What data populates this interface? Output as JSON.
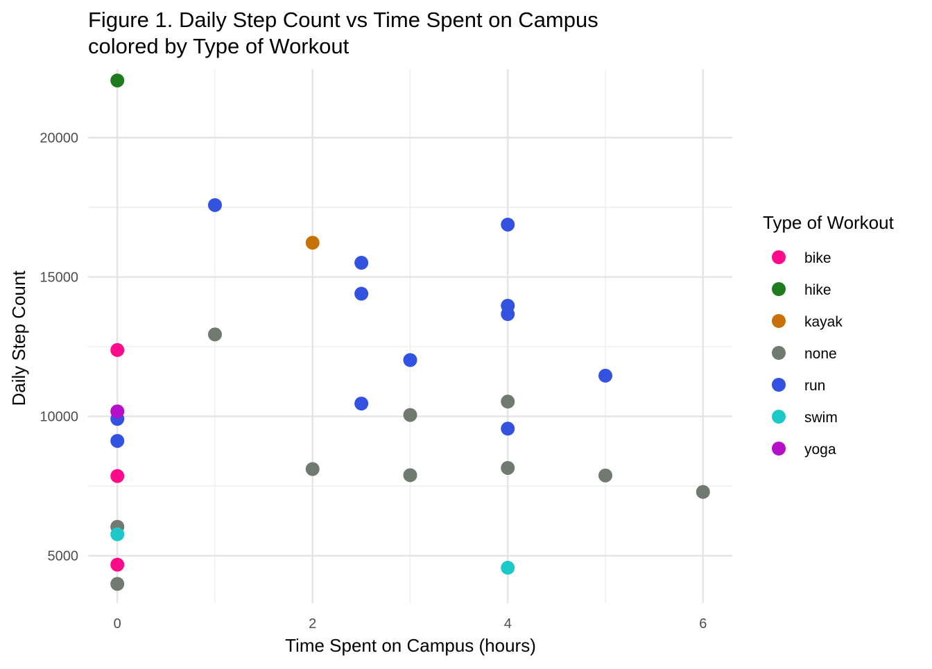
{
  "chart_data": {
    "type": "scatter",
    "title": "Figure 1. Daily Step Count vs Time Spent on Campus",
    "subtitle": "colored by Type of Workout",
    "xlabel": "Time Spent on Campus (hours)",
    "ylabel": "Daily Step Count",
    "xlim": [
      -0.3,
      6.3
    ],
    "ylim": [
      3300,
      22450
    ],
    "xticks": [
      0,
      2,
      4,
      6
    ],
    "yticks": [
      5000,
      10000,
      15000,
      20000
    ],
    "xtick_labels": [
      "0",
      "2",
      "4",
      "6"
    ],
    "ytick_labels": [
      "5000",
      "10000",
      "15000",
      "20000"
    ],
    "grid": true,
    "legend": {
      "title": "Type of Workout",
      "position": "right"
    },
    "series": [
      {
        "name": "bike",
        "color": "#FF0A8A",
        "points": [
          [
            0,
            12380
          ],
          [
            0,
            7860
          ],
          [
            0,
            4680
          ]
        ]
      },
      {
        "name": "hike",
        "color": "#1E7B1E",
        "points": [
          [
            0,
            22050
          ]
        ]
      },
      {
        "name": "kayak",
        "color": "#C87108",
        "points": [
          [
            2,
            16230
          ]
        ]
      },
      {
        "name": "none",
        "color": "#707A70",
        "points": [
          [
            0,
            6040
          ],
          [
            0,
            3990
          ],
          [
            1,
            12940
          ],
          [
            2,
            8110
          ],
          [
            3,
            7890
          ],
          [
            3,
            10050
          ],
          [
            4,
            8150
          ],
          [
            4,
            10530
          ],
          [
            5,
            7880
          ],
          [
            6,
            7290
          ]
        ]
      },
      {
        "name": "run",
        "color": "#3352E0",
        "points": [
          [
            0,
            9910
          ],
          [
            0,
            9120
          ],
          [
            1,
            17580
          ],
          [
            2.5,
            15510
          ],
          [
            2.5,
            14400
          ],
          [
            2.5,
            10460
          ],
          [
            3,
            12020
          ],
          [
            4,
            16880
          ],
          [
            4,
            13970
          ],
          [
            4,
            13670
          ],
          [
            4,
            9560
          ],
          [
            5,
            11460
          ]
        ]
      },
      {
        "name": "swim",
        "color": "#1CC8C8",
        "points": [
          [
            0,
            5770
          ],
          [
            4,
            4570
          ]
        ]
      },
      {
        "name": "yoga",
        "color": "#B50FC9",
        "points": [
          [
            0,
            10180
          ]
        ]
      }
    ]
  }
}
